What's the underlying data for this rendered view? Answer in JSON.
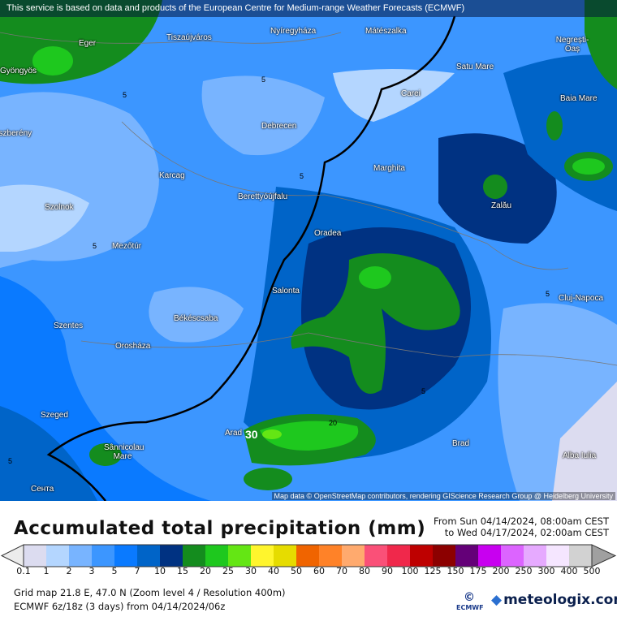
{
  "header": {
    "notice": "This service is based on data and products of the European Centre for Medium-range Weather Forecasts (ECMWF)"
  },
  "map": {
    "attribution": "Map data © OpenStreetMap contributors, rendering GIScience Research Group @ Heidelberg University",
    "cities": [
      {
        "name": "Eger"
      },
      {
        "name": "Gyöngyös"
      },
      {
        "name": "Tiszaújváros"
      },
      {
        "name": "Nyíregyháza"
      },
      {
        "name": "Mátészalka"
      },
      {
        "name": "Negrești-Oaș"
      },
      {
        "name": "Satu Mare"
      },
      {
        "name": "Carei"
      },
      {
        "name": "Baia Mare"
      },
      {
        "name": "Jászberény"
      },
      {
        "name": "Debrecen"
      },
      {
        "name": "Karcag"
      },
      {
        "name": "Marghita"
      },
      {
        "name": "Berettyóújfalu"
      },
      {
        "name": "Szolnok"
      },
      {
        "name": "Zalău"
      },
      {
        "name": "Oradea"
      },
      {
        "name": "Mezőtúr"
      },
      {
        "name": "Salonta"
      },
      {
        "name": "Cluj-Napoca"
      },
      {
        "name": "Békéscsaba"
      },
      {
        "name": "Szentes"
      },
      {
        "name": "Orosháza"
      },
      {
        "name": "Szeged"
      },
      {
        "name": "Arad"
      },
      {
        "name": "Brad"
      },
      {
        "name": "Sânnicolau Mare"
      },
      {
        "name": "Alba Iulia"
      },
      {
        "name": "Сента"
      }
    ],
    "contour_labels": [
      "5",
      "5",
      "5",
      "5",
      "5",
      "5",
      "5",
      "20",
      "30"
    ]
  },
  "title": "Accumulated total precipitation (mm)",
  "period": {
    "from": "From Sun 04/14/2024, 08:00am CEST",
    "to": "to Wed 04/17/2024, 02:00am CEST"
  },
  "legend": {
    "ticks": [
      "0.1",
      "1",
      "2",
      "3",
      "5",
      "7",
      "10",
      "15",
      "20",
      "25",
      "30",
      "40",
      "50",
      "60",
      "70",
      "80",
      "90",
      "100",
      "125",
      "150",
      "175",
      "200",
      "250",
      "300",
      "400",
      "500"
    ],
    "colors": [
      "#dcdcf0",
      "#b4d6ff",
      "#78b4ff",
      "#3c96ff",
      "#0a7aff",
      "#0064c8",
      "#003282",
      "#148c1e",
      "#1ec81e",
      "#64e614",
      "#fff52d",
      "#e6dc00",
      "#f06400",
      "#ff8228",
      "#ffaa6e",
      "#fa5078",
      "#f0284b",
      "#be0000",
      "#8c0000",
      "#640078",
      "#c800f0",
      "#dc64ff",
      "#e6aaff",
      "#f5e6ff",
      "#d2d2d2"
    ],
    "under_color": "#ececec",
    "over_color": "#a0a0a0"
  },
  "info": {
    "grid": "Grid map 21.8 E, 47.0 N (Zoom level 4 / Resolution 400m)",
    "model": "ECMWF 6z/18z (3 days) from  04/14/2024/06z"
  },
  "logos": {
    "ecmwf": "ECMWF",
    "meteologix": "meteologix.com"
  }
}
